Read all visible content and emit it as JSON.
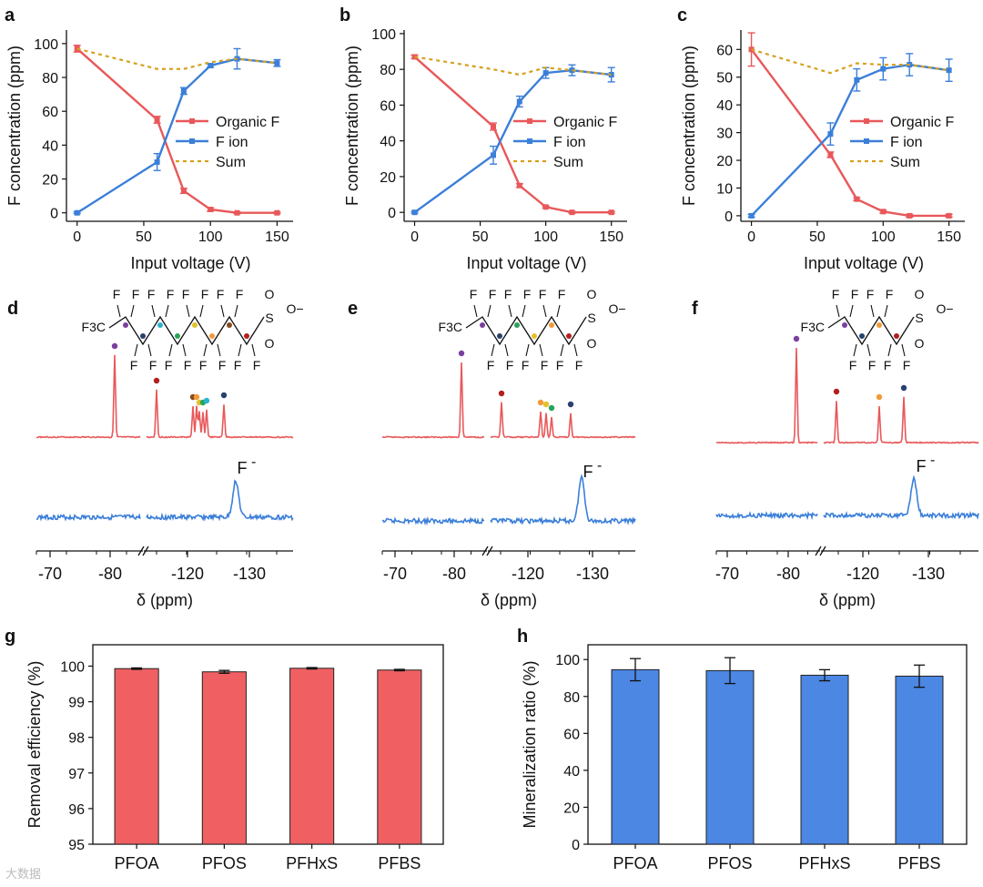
{
  "colors": {
    "organic": "#e8585a",
    "ion": "#3b7fd9",
    "sum": "#d6a11e",
    "bar_g": "#f06062",
    "bar_h": "#4b87e3",
    "spec_top": "#e8585a",
    "spec_bot": "#3b7fd9"
  },
  "panel_letters": {
    "a": "a",
    "b": "b",
    "c": "c",
    "d": "d",
    "e": "e",
    "f": "f",
    "g": "g",
    "h": "h"
  },
  "legend": {
    "organic": "Organic F",
    "ion": "F ion",
    "sum": "Sum"
  },
  "fluoride_label": "F",
  "fluoride_charge": "-",
  "nmr_xlabel": "δ (ppm)",
  "nmr_ticks": [
    "-70",
    "-80",
    "-120",
    "-130"
  ],
  "chem": {
    "cf3": "F3C",
    "f": "F",
    "s": "S",
    "o": "O",
    "ominus": "O−"
  },
  "watermark": "大数据",
  "chart_data": [
    {
      "id": "a",
      "type": "line",
      "title": "",
      "xlabel": "Input voltage (V)",
      "ylabel": "F concentration (ppm)",
      "xlim": [
        -8,
        162
      ],
      "ylim": [
        -5,
        108
      ],
      "xticks": [
        0,
        50,
        100,
        150
      ],
      "yticks": [
        0,
        20,
        40,
        60,
        80,
        100
      ],
      "x": [
        0,
        60,
        80,
        100,
        120,
        150
      ],
      "series": [
        {
          "name": "Organic F",
          "values": [
            97,
            55,
            13,
            2,
            0,
            0
          ],
          "err": [
            2,
            2,
            1.5,
            1,
            0.5,
            0.5
          ]
        },
        {
          "name": "F ion",
          "values": [
            0,
            30,
            72,
            87,
            91,
            88.5
          ],
          "err": [
            0.5,
            5,
            2,
            1,
            6,
            2
          ]
        },
        {
          "name": "Sum",
          "values": [
            97,
            85,
            85,
            89,
            91,
            88.5
          ]
        }
      ]
    },
    {
      "id": "b",
      "type": "line",
      "title": "",
      "xlabel": "Input voltage (V)",
      "ylabel": "F concentration (ppm)",
      "xlim": [
        -8,
        162
      ],
      "ylim": [
        -5,
        102
      ],
      "xticks": [
        0,
        50,
        100,
        150
      ],
      "yticks": [
        0,
        20,
        40,
        60,
        80,
        100
      ],
      "x": [
        0,
        60,
        80,
        100,
        120,
        150
      ],
      "series": [
        {
          "name": "Organic F",
          "values": [
            87,
            48,
            15,
            3,
            0,
            0
          ],
          "err": [
            1,
            2,
            1,
            0.5,
            0.5,
            0.5
          ]
        },
        {
          "name": "F ion",
          "values": [
            0,
            32,
            62,
            78,
            79.5,
            77
          ],
          "err": [
            0.5,
            5,
            3,
            3,
            3,
            4
          ]
        },
        {
          "name": "Sum",
          "values": [
            87,
            80,
            77,
            81,
            79.5,
            77
          ]
        }
      ]
    },
    {
      "id": "c",
      "type": "line",
      "title": "",
      "xlabel": "Input voltage (V)",
      "ylabel": "F concentration (ppm)",
      "xlim": [
        -8,
        162
      ],
      "ylim": [
        -2,
        67
      ],
      "xticks": [
        0,
        50,
        100,
        150
      ],
      "yticks": [
        0,
        10,
        20,
        30,
        40,
        50,
        60
      ],
      "x": [
        0,
        60,
        80,
        100,
        120,
        150
      ],
      "series": [
        {
          "name": "Organic F",
          "values": [
            60,
            22,
            6,
            1.5,
            0,
            0
          ],
          "err": [
            6,
            1,
            0.5,
            0.5,
            0.5,
            0.5
          ]
        },
        {
          "name": "F ion",
          "values": [
            0,
            29.5,
            49,
            53,
            54.5,
            52.5
          ],
          "err": [
            0.5,
            4,
            4,
            4,
            4,
            4
          ]
        },
        {
          "name": "Sum",
          "values": [
            60,
            51.5,
            55,
            54.5,
            54.5,
            52.5
          ]
        }
      ]
    },
    {
      "id": "g",
      "type": "bar",
      "title": "",
      "xlabel": "",
      "ylabel": "Removal efficiency (%)",
      "categories": [
        "PFOA",
        "PFOS",
        "PFHxS",
        "PFBS"
      ],
      "values": [
        99.93,
        99.84,
        99.94,
        99.89
      ],
      "err": [
        0.02,
        0.04,
        0.02,
        0.02
      ],
      "ylim": [
        95,
        100.6
      ],
      "yticks": [
        95,
        96,
        97,
        98,
        99,
        100
      ]
    },
    {
      "id": "h",
      "type": "bar",
      "title": "",
      "xlabel": "",
      "ylabel": "Mineralization ratio (%)",
      "categories": [
        "PFOA",
        "PFOS",
        "PFHxS",
        "PFBS"
      ],
      "values": [
        94.5,
        94,
        91.5,
        91
      ],
      "err": [
        6,
        7,
        3,
        6
      ],
      "ylim": [
        0,
        108
      ],
      "yticks": [
        0,
        20,
        40,
        60,
        80,
        100
      ]
    }
  ]
}
